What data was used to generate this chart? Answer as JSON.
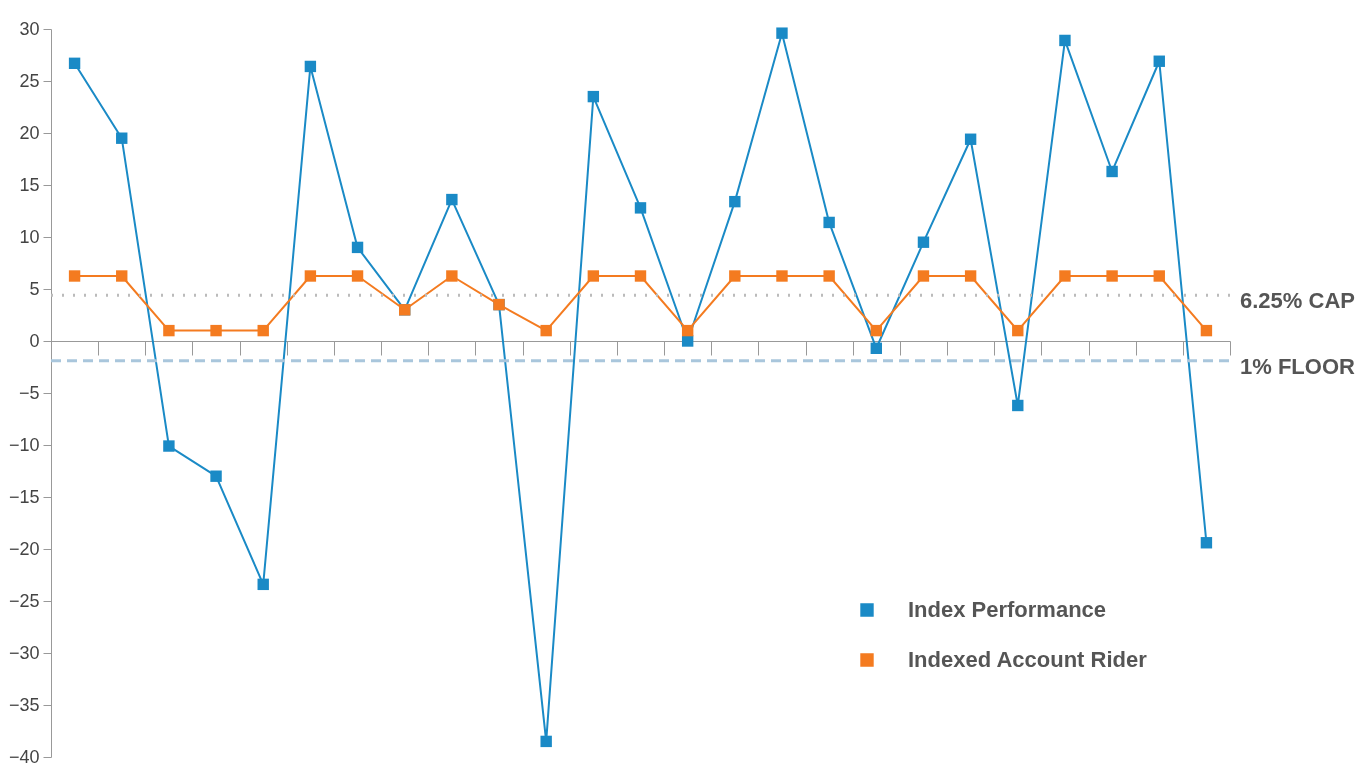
{
  "chart_data": {
    "type": "line",
    "categories": [
      null,
      null,
      null,
      null,
      null,
      null,
      null,
      null,
      null,
      null,
      null,
      null,
      null,
      null,
      null,
      null,
      null,
      null,
      null,
      null,
      null,
      null,
      null,
      null,
      null
    ],
    "series": [
      {
        "name": "Index Performance",
        "color": "#1a8ac6",
        "values": [
          26.7,
          19.5,
          -10.1,
          -13.0,
          -23.4,
          26.4,
          9.0,
          3.0,
          13.6,
          3.5,
          -38.5,
          23.5,
          12.8,
          0.0,
          13.4,
          29.6,
          11.4,
          -0.7,
          9.5,
          19.4,
          -6.2,
          28.9,
          16.3,
          26.9,
          -19.4
        ]
      },
      {
        "name": "Indexed Account Rider",
        "color": "#f47b20",
        "values": [
          6.25,
          6.25,
          1,
          1,
          1,
          6.25,
          6.25,
          3.0,
          6.25,
          3.5,
          1,
          6.25,
          6.25,
          1,
          6.25,
          6.25,
          6.25,
          1,
          6.25,
          6.25,
          1,
          6.25,
          6.25,
          6.25,
          1
        ]
      }
    ],
    "ylim": [
      -40,
      30
    ],
    "yticks": [
      -40,
      -35,
      -30,
      -25,
      -20,
      -15,
      -10,
      -5,
      0,
      5,
      10,
      15,
      20,
      25,
      30
    ],
    "tick_labels": "y",
    "marker": "square",
    "legend": "bottom right",
    "ref_lines": [
      {
        "axis": "y",
        "value": 4.4,
        "label": "6.25% CAP",
        "color": "#bbbbbb",
        "line_style": "dotted"
      },
      {
        "axis": "y",
        "value": -1.9,
        "label": "1% FLOOR",
        "color": "#a9c6dc",
        "line_style": "dashed"
      }
    ]
  }
}
